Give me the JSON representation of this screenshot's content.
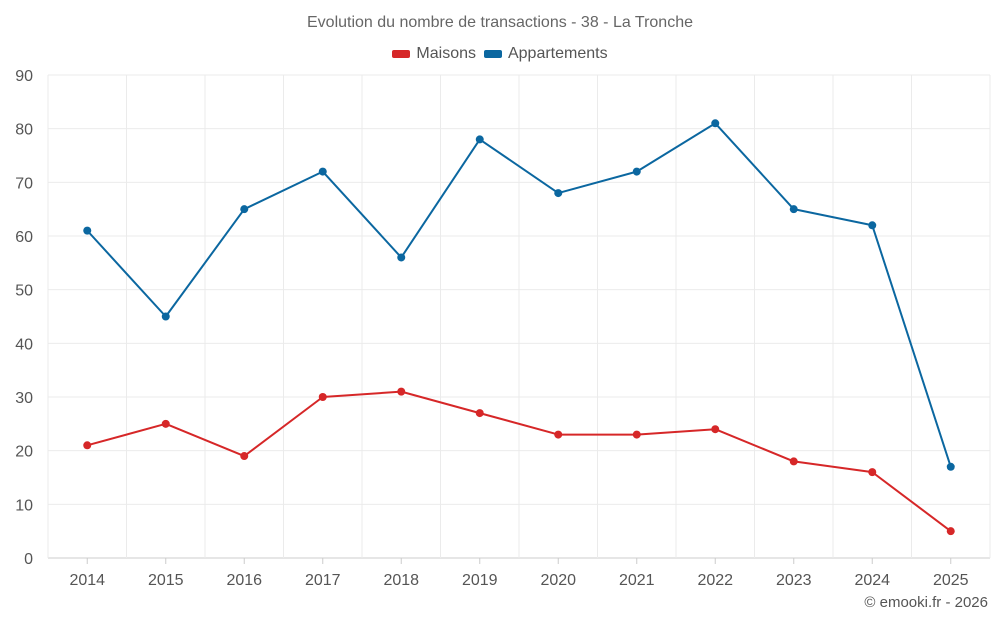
{
  "chart_data": {
    "type": "line",
    "title": "Evolution du nombre de transactions - 38 - La Tronche",
    "categories": [
      "2014",
      "2015",
      "2016",
      "2017",
      "2018",
      "2019",
      "2020",
      "2021",
      "2022",
      "2023",
      "2024",
      "2025"
    ],
    "series": [
      {
        "name": "Maisons",
        "color": "#d62728",
        "values": [
          21,
          25,
          19,
          30,
          31,
          27,
          23,
          23,
          24,
          18,
          16,
          5
        ]
      },
      {
        "name": "Appartements",
        "color": "#0b67a0",
        "values": [
          61,
          45,
          65,
          72,
          56,
          78,
          68,
          72,
          81,
          65,
          62,
          17
        ]
      }
    ],
    "ylim": [
      0,
      90
    ],
    "yticks": [
      0,
      10,
      20,
      30,
      40,
      50,
      60,
      70,
      80,
      90
    ],
    "xlabel": "",
    "ylabel": "",
    "grid": true,
    "legend": "top-center"
  },
  "credit": "© emooki.fr - 2026"
}
